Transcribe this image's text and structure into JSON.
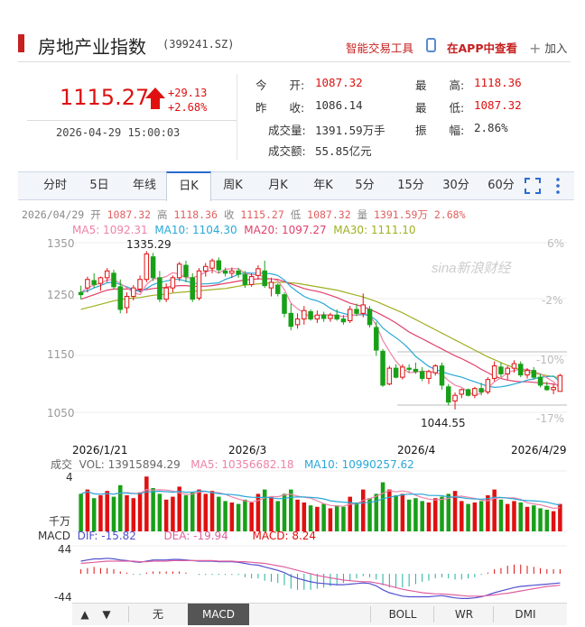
{
  "header": {
    "title": "房地产业指数",
    "code": "(399241.SZ)",
    "tools_label": "智能交易工具",
    "app_label": "在APP中查看",
    "add_label": "加入"
  },
  "quote": {
    "price": "1115.27",
    "change": "+29.13",
    "change_pct": "+2.68%",
    "datetime": "2026-04-29 15:00:03",
    "open_label": "今　　开:",
    "open": "1087.32",
    "prev_close_label": "昨　　收:",
    "prev_close": "1086.14",
    "volume_label": "成交量:",
    "volume": "1391.59万手",
    "amount_label": "成交额:",
    "amount": "55.85亿元",
    "high_label": "最　　高:",
    "high": "1118.36",
    "low_label": "最　　低:",
    "low": "1087.32",
    "amplitude_label": "振　　幅:",
    "amplitude": "2.86%"
  },
  "tabs": [
    "分时",
    "5日",
    "年线",
    "日K",
    "周K",
    "月K",
    "年K",
    "5分",
    "15分",
    "30分",
    "60分"
  ],
  "active_tab": "日K",
  "info_line": {
    "date": "2026/04/29",
    "open_label": "开",
    "open": "1087.32",
    "high_label": "高",
    "high": "1118.36",
    "close_label": "收",
    "close": "1115.27",
    "low_label": "低",
    "low": "1087.32",
    "vol_label": "量",
    "vol": "1391.59万",
    "pct": "2.68%"
  },
  "ma_legend": {
    "ma5": "MA5: 1092.31",
    "ma10": "MA10: 1104.30",
    "ma20": "MA20: 1097.27",
    "ma30": "MA30: 1111.10"
  },
  "y_labels": [
    "1350",
    "1250",
    "1150",
    "1050"
  ],
  "pct_labels": [
    "6%",
    "-2%",
    "-10%",
    "-17%"
  ],
  "x_labels": [
    "2026/1/21",
    "2026/3",
    "2026/4",
    "2026/4/29"
  ],
  "max_label": "1335.29",
  "min_label": "1044.55",
  "watermark": "sina新浪财经",
  "volume_legend": {
    "label": "成交",
    "vol": "VOL: 13915894.29",
    "ma5": "MA5: 10356682.18",
    "ma10": "MA10: 10990257.62"
  },
  "volume_axis": {
    "top": "4",
    "unit": "千万"
  },
  "macd_legend": {
    "label": "MACD",
    "dif": "DIF: -15.82",
    "dea": "DEA: -19.94",
    "macd": "MACD: 8.24"
  },
  "macd_axis": {
    "top": "44",
    "bottom": "-44"
  },
  "bottom_bar": {
    "up": "▲",
    "down": "▼",
    "items": [
      "无",
      "MACD",
      "BOLL",
      "WR",
      "DMI"
    ],
    "active": "MACD"
  },
  "colors": {
    "up": "#e01010",
    "down": "#18a018",
    "ma5": "#ee82a8",
    "ma10": "#2aa8d8",
    "ma20": "#e0406a",
    "ma30": "#a0b020",
    "dif": "#5050d0",
    "dea": "#e060a0"
  },
  "chart_data": {
    "type": "candlestick",
    "candles": [
      [
        1262,
        1274,
        1250,
        1258
      ],
      [
        1270,
        1290,
        1262,
        1285
      ],
      [
        1283,
        1296,
        1270,
        1276
      ],
      [
        1278,
        1290,
        1265,
        1288
      ],
      [
        1288,
        1305,
        1280,
        1300
      ],
      [
        1296,
        1302,
        1268,
        1272
      ],
      [
        1272,
        1285,
        1225,
        1232
      ],
      [
        1235,
        1262,
        1225,
        1255
      ],
      [
        1255,
        1275,
        1248,
        1270
      ],
      [
        1268,
        1292,
        1262,
        1285
      ],
      [
        1285,
        1335,
        1280,
        1330
      ],
      [
        1325,
        1332,
        1282,
        1288
      ],
      [
        1288,
        1300,
        1245,
        1250
      ],
      [
        1250,
        1278,
        1245,
        1270
      ],
      [
        1270,
        1292,
        1262,
        1288
      ],
      [
        1288,
        1316,
        1282,
        1312
      ],
      [
        1310,
        1318,
        1280,
        1290
      ],
      [
        1288,
        1296,
        1245,
        1250
      ],
      [
        1252,
        1305,
        1248,
        1300
      ],
      [
        1300,
        1314,
        1290,
        1308
      ],
      [
        1305,
        1322,
        1296,
        1318
      ],
      [
        1318,
        1324,
        1296,
        1302
      ],
      [
        1300,
        1306,
        1290,
        1296
      ],
      [
        1296,
        1306,
        1288,
        1300
      ],
      [
        1300,
        1305,
        1288,
        1294
      ],
      [
        1294,
        1300,
        1270,
        1276
      ],
      [
        1276,
        1296,
        1272,
        1290
      ],
      [
        1292,
        1310,
        1285,
        1304
      ],
      [
        1300,
        1318,
        1270,
        1274
      ],
      [
        1270,
        1288,
        1255,
        1280
      ],
      [
        1275,
        1278,
        1255,
        1260
      ],
      [
        1258,
        1262,
        1218,
        1225
      ],
      [
        1225,
        1242,
        1195,
        1202
      ],
      [
        1205,
        1225,
        1198,
        1215
      ],
      [
        1215,
        1238,
        1205,
        1230
      ],
      [
        1228,
        1232,
        1212,
        1215
      ],
      [
        1215,
        1230,
        1208,
        1222
      ],
      [
        1222,
        1228,
        1210,
        1216
      ],
      [
        1216,
        1226,
        1210,
        1222
      ],
      [
        1222,
        1232,
        1212,
        1215
      ],
      [
        1215,
        1222,
        1205,
        1210
      ],
      [
        1212,
        1238,
        1208,
        1232
      ],
      [
        1232,
        1242,
        1220,
        1225
      ],
      [
        1225,
        1260,
        1218,
        1240
      ],
      [
        1232,
        1238,
        1200,
        1205
      ],
      [
        1200,
        1210,
        1150,
        1160
      ],
      [
        1158,
        1162,
        1095,
        1098
      ],
      [
        1100,
        1132,
        1098,
        1128
      ],
      [
        1128,
        1135,
        1110,
        1112
      ],
      [
        1112,
        1135,
        1108,
        1130
      ],
      [
        1128,
        1135,
        1120,
        1126
      ],
      [
        1126,
        1138,
        1118,
        1122
      ],
      [
        1122,
        1130,
        1105,
        1110
      ],
      [
        1110,
        1125,
        1100,
        1122
      ],
      [
        1120,
        1135,
        1115,
        1132
      ],
      [
        1132,
        1138,
        1090,
        1098
      ],
      [
        1095,
        1100,
        1062,
        1068
      ],
      [
        1070,
        1085,
        1055,
        1080
      ],
      [
        1082,
        1092,
        1075,
        1090
      ],
      [
        1090,
        1092,
        1078,
        1080
      ],
      [
        1080,
        1095,
        1075,
        1092
      ],
      [
        1092,
        1102,
        1080,
        1086
      ],
      [
        1086,
        1112,
        1082,
        1108
      ],
      [
        1110,
        1140,
        1105,
        1132
      ],
      [
        1130,
        1138,
        1112,
        1118
      ],
      [
        1118,
        1132,
        1108,
        1128
      ],
      [
        1128,
        1142,
        1120,
        1136
      ],
      [
        1135,
        1140,
        1112,
        1116
      ],
      [
        1116,
        1128,
        1110,
        1124
      ],
      [
        1124,
        1130,
        1108,
        1112
      ],
      [
        1112,
        1118,
        1094,
        1098
      ],
      [
        1096,
        1104,
        1088,
        1090
      ],
      [
        1090,
        1100,
        1082,
        1094
      ],
      [
        1087,
        1118,
        1087,
        1115
      ]
    ],
    "max": 1335.29,
    "min": 1044.55,
    "y_ticks": [
      1350,
      1250,
      1150,
      1050
    ],
    "pct_ticks": [
      "6%",
      "-2%",
      "-10%",
      "-17%"
    ],
    "x_ticks": [
      "2026/1/21",
      "2026/3",
      "2026/4",
      "2026/4/29"
    ],
    "ma": {
      "ma5": [
        1262,
        1270,
        1275,
        1278,
        1284,
        1285,
        1278,
        1270,
        1262,
        1258,
        1276,
        1286,
        1287,
        1290,
        1297,
        1294,
        1288,
        1288,
        1292,
        1298,
        1302,
        1296,
        1303,
        1304,
        1304,
        1296,
        1293,
        1294,
        1288,
        1286,
        1283,
        1267,
        1243,
        1233,
        1226,
        1218,
        1221,
        1223,
        1222,
        1221,
        1219,
        1221,
        1222,
        1225,
        1222,
        1204,
        1177,
        1158,
        1140,
        1128,
        1120,
        1121,
        1123,
        1122,
        1120,
        1117,
        1106,
        1098,
        1094,
        1086,
        1080,
        1084,
        1093,
        1104,
        1111,
        1120,
        1124,
        1126,
        1126,
        1122,
        1118,
        1111,
        1104,
        1092
      ],
      "ma10": [
        1262,
        1265,
        1270,
        1274,
        1279,
        1280,
        1276,
        1272,
        1267,
        1263,
        1269,
        1276,
        1280,
        1282,
        1285,
        1285,
        1282,
        1279,
        1277,
        1277,
        1278,
        1279,
        1285,
        1289,
        1294,
        1297,
        1296,
        1296,
        1296,
        1295,
        1292,
        1284,
        1272,
        1263,
        1255,
        1250,
        1247,
        1242,
        1234,
        1228,
        1225,
        1222,
        1222,
        1223,
        1221,
        1213,
        1199,
        1190,
        1182,
        1173,
        1162,
        1149,
        1140,
        1131,
        1126,
        1122,
        1118,
        1115,
        1112,
        1108,
        1104,
        1100,
        1096,
        1094,
        1095,
        1097,
        1100,
        1103,
        1107,
        1109,
        1112,
        1113,
        1114,
        1104
      ],
      "ma20": [
        1250,
        1254,
        1258,
        1262,
        1266,
        1268,
        1268,
        1268,
        1267,
        1266,
        1267,
        1269,
        1270,
        1271,
        1273,
        1274,
        1274,
        1273,
        1273,
        1273,
        1274,
        1276,
        1278,
        1280,
        1282,
        1284,
        1285,
        1286,
        1286,
        1286,
        1285,
        1281,
        1277,
        1273,
        1269,
        1266,
        1264,
        1261,
        1257,
        1253,
        1248,
        1243,
        1240,
        1237,
        1232,
        1227,
        1221,
        1215,
        1208,
        1200,
        1192,
        1186,
        1180,
        1174,
        1168,
        1162,
        1156,
        1150,
        1145,
        1139,
        1133,
        1126,
        1120,
        1114,
        1110,
        1107,
        1105,
        1104,
        1104,
        1103,
        1102,
        1101,
        1100,
        1097
      ],
      "ma30": [
        1232,
        1235,
        1238,
        1241,
        1244,
        1247,
        1249,
        1251,
        1252,
        1253,
        1255,
        1257,
        1258,
        1259,
        1261,
        1262,
        1263,
        1264,
        1265,
        1266,
        1267,
        1268,
        1269,
        1271,
        1273,
        1275,
        1276,
        1277,
        1278,
        1279,
        1280,
        1280,
        1279,
        1278,
        1276,
        1274,
        1272,
        1270,
        1268,
        1266,
        1263,
        1260,
        1257,
        1254,
        1250,
        1246,
        1241,
        1236,
        1231,
        1226,
        1220,
        1214,
        1208,
        1202,
        1196,
        1190,
        1184,
        1178,
        1172,
        1166,
        1160,
        1154,
        1148,
        1143,
        1138,
        1133,
        1129,
        1125,
        1122,
        1119,
        1117,
        1115,
        1113,
        1111
      ]
    },
    "volume": [
      2.6,
      2.9,
      2.3,
      2.5,
      2.8,
      2.4,
      3.2,
      2.5,
      2.3,
      2.7,
      3.8,
      3.0,
      2.6,
      2.2,
      2.4,
      3.1,
      2.5,
      2.7,
      2.9,
      2.6,
      2.8,
      2.4,
      2.1,
      2.0,
      1.9,
      2.2,
      2.0,
      2.6,
      2.9,
      2.4,
      2.1,
      2.6,
      2.9,
      2.2,
      2.0,
      1.8,
      1.7,
      1.9,
      1.6,
      1.8,
      1.7,
      2.4,
      2.0,
      2.9,
      2.3,
      2.6,
      3.4,
      2.9,
      2.5,
      2.6,
      2.2,
      2.3,
      2.1,
      2.0,
      2.3,
      2.4,
      2.6,
      2.8,
      2.1,
      1.9,
      2.0,
      2.1,
      2.5,
      2.9,
      2.2,
      1.9,
      2.1,
      2.0,
      1.7,
      1.8,
      1.6,
      1.5,
      1.4,
      1.9
    ],
    "macd": {
      "dif": [
        22,
        24,
        26,
        26,
        27,
        26,
        24,
        23,
        21,
        20,
        22,
        24,
        24,
        24,
        25,
        25,
        24,
        23,
        22,
        22,
        22,
        21,
        21,
        21,
        20,
        18,
        16,
        15,
        12,
        9,
        6,
        2,
        -4,
        -8,
        -11,
        -14,
        -16,
        -17,
        -18,
        -19,
        -19,
        -18,
        -17,
        -16,
        -17,
        -21,
        -28,
        -33,
        -36,
        -39,
        -40,
        -40,
        -40,
        -40,
        -39,
        -38,
        -40,
        -42,
        -43,
        -43,
        -42,
        -40,
        -37,
        -33,
        -30,
        -27,
        -24,
        -22,
        -21,
        -20,
        -19,
        -18,
        -17,
        -16
      ],
      "dea": [
        18,
        19,
        20,
        21,
        22,
        22,
        22,
        22,
        22,
        21,
        21,
        22,
        22,
        22,
        23,
        23,
        23,
        23,
        23,
        23,
        23,
        22,
        22,
        22,
        21,
        21,
        20,
        19,
        18,
        16,
        14,
        12,
        9,
        6,
        3,
        0,
        -3,
        -5,
        -7,
        -9,
        -11,
        -12,
        -13,
        -14,
        -14,
        -16,
        -18,
        -21,
        -24,
        -27,
        -29,
        -31,
        -33,
        -34,
        -35,
        -35,
        -36,
        -37,
        -38,
        -39,
        -39,
        -39,
        -38,
        -37,
        -35,
        -34,
        -32,
        -30,
        -28,
        -26,
        -24,
        -22,
        -21,
        -20
      ],
      "hist": [
        8,
        10,
        12,
        10,
        10,
        8,
        4,
        2,
        -2,
        -2,
        2,
        4,
        4,
        4,
        4,
        4,
        2,
        0,
        -2,
        -2,
        -2,
        -2,
        -2,
        -2,
        -2,
        -6,
        -8,
        -8,
        -12,
        -14,
        -16,
        -20,
        -26,
        -28,
        -28,
        -28,
        -26,
        -24,
        -22,
        -20,
        -16,
        -12,
        -8,
        -4,
        -6,
        -10,
        -20,
        -24,
        -24,
        -24,
        -22,
        -18,
        -14,
        -12,
        -8,
        -6,
        -8,
        -10,
        -10,
        -8,
        -6,
        -2,
        2,
        8,
        10,
        14,
        16,
        16,
        14,
        12,
        10,
        8,
        8,
        8
      ]
    }
  }
}
